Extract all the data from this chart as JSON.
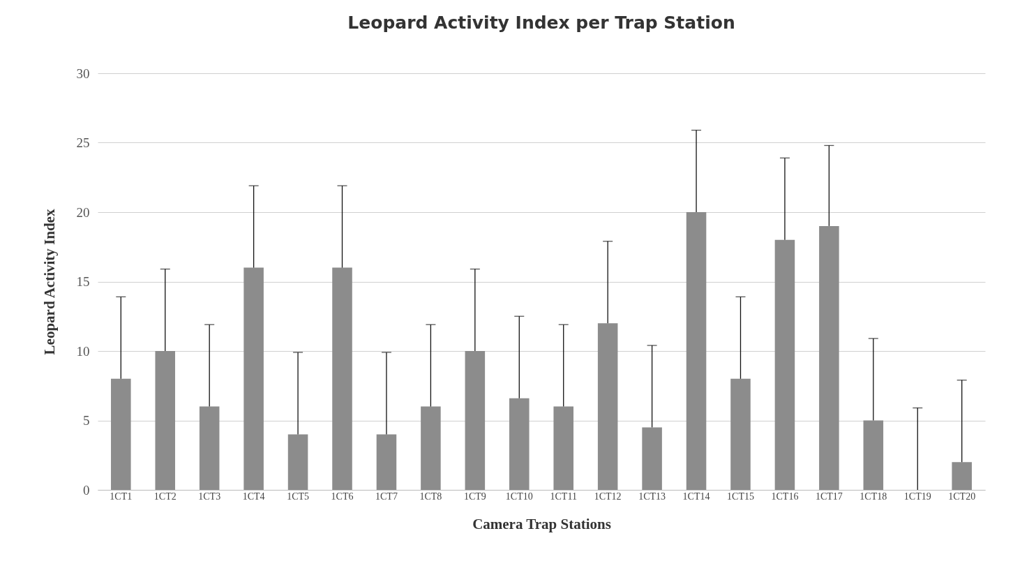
{
  "chart_data": {
    "type": "bar",
    "title": "Leopard Activity Index per Trap Station",
    "xlabel": "Camera Trap Stations",
    "ylabel": "Leopard Activity Index",
    "categories": [
      "1CT1",
      "1CT2",
      "1CT3",
      "1CT4",
      "1CT5",
      "1CT6",
      "1CT7",
      "1CT8",
      "1CT9",
      "1CT10",
      "1CT11",
      "1CT12",
      "1CT13",
      "1CT14",
      "1CT15",
      "1CT16",
      "1CT17",
      "1CT18",
      "1CT19",
      "1CT20"
    ],
    "values": [
      8,
      10,
      6,
      16,
      4,
      16,
      4,
      6,
      10,
      6.6,
      6,
      12,
      4.5,
      20,
      8,
      18,
      19,
      5,
      0,
      2
    ],
    "errors": [
      [
        8,
        13.9
      ],
      [
        10,
        15.9
      ],
      [
        6,
        11.9
      ],
      [
        16,
        21.9
      ],
      [
        4,
        9.9
      ],
      [
        16,
        21.9
      ],
      [
        4,
        9.9
      ],
      [
        6,
        11.9
      ],
      [
        10,
        15.9
      ],
      [
        6.6,
        12.5
      ],
      [
        6,
        11.9
      ],
      [
        12,
        17.9
      ],
      [
        4.5,
        10.4
      ],
      [
        20,
        25.9
      ],
      [
        8,
        13.9
      ],
      [
        18,
        23.9
      ],
      [
        19,
        24.8
      ],
      [
        5,
        10.9
      ],
      [
        0,
        5.9
      ],
      [
        2,
        7.9
      ]
    ],
    "color": "#8c8c8c",
    "ylim": [
      0,
      30
    ],
    "yticks": [
      0,
      5,
      10,
      15,
      20,
      25,
      30
    ],
    "grid": "y"
  }
}
